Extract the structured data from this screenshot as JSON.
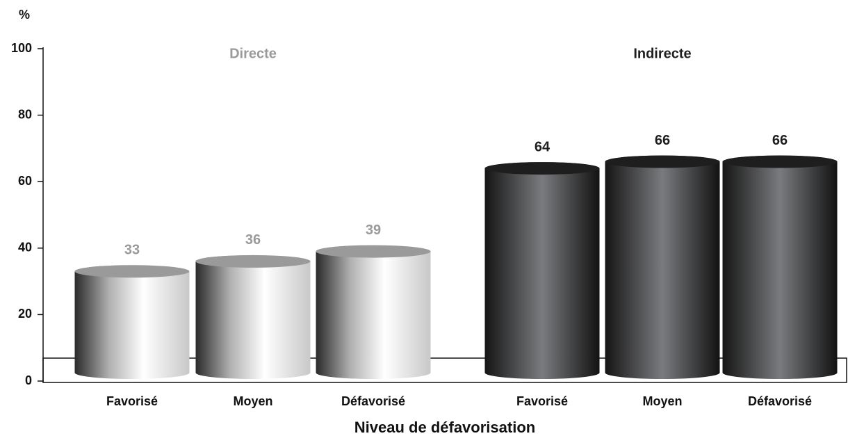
{
  "chart_data": {
    "type": "bar",
    "ylabel": "%",
    "xlabel": "Niveau de défavorisation",
    "categories": [
      "Favorisé",
      "Moyen",
      "Défavorisé"
    ],
    "series": [
      {
        "name": "Directe",
        "color": "#9a9a9a",
        "values": [
          33,
          36,
          39
        ]
      },
      {
        "name": "Indirecte",
        "color": "#1e1e1e",
        "values": [
          64,
          66,
          66
        ]
      }
    ],
    "ylim": [
      0,
      100
    ],
    "yticks": [
      0,
      20,
      40,
      60,
      80,
      100
    ]
  }
}
